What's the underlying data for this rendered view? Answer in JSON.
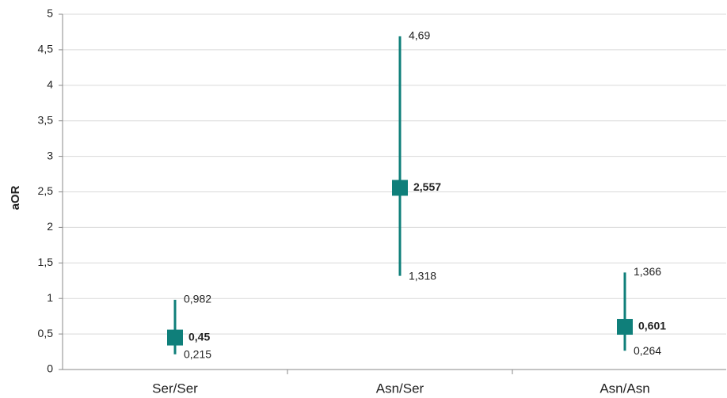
{
  "chart_data": {
    "type": "errorbar",
    "y_label": "aOR",
    "categories": [
      "Ser/Ser",
      "Asn/Ser",
      "Asn/Asn"
    ],
    "values": [
      0.45,
      2.557,
      0.601
    ],
    "value_labels": [
      "0,45",
      "2,557",
      "0,601"
    ],
    "lower": [
      0.215,
      1.318,
      0.264
    ],
    "lower_labels": [
      "0,215",
      "1,318",
      "0,264"
    ],
    "upper": [
      0.982,
      4.69,
      1.366
    ],
    "upper_labels": [
      "0,982",
      "4,69",
      "1,366"
    ],
    "color": "#0f7f7a",
    "ylim": [
      0,
      5
    ],
    "yticks": [
      0,
      {
        "value": 0.5,
        "label": "0,5"
      },
      1,
      {
        "value": 1.5,
        "label": "1,5"
      },
      2,
      {
        "value": 2.5,
        "label": "2,5"
      },
      3,
      {
        "value": 3.5,
        "label": "3,5"
      },
      4,
      {
        "value": 4.5,
        "label": "4,5"
      },
      5
    ],
    "grid": true
  }
}
